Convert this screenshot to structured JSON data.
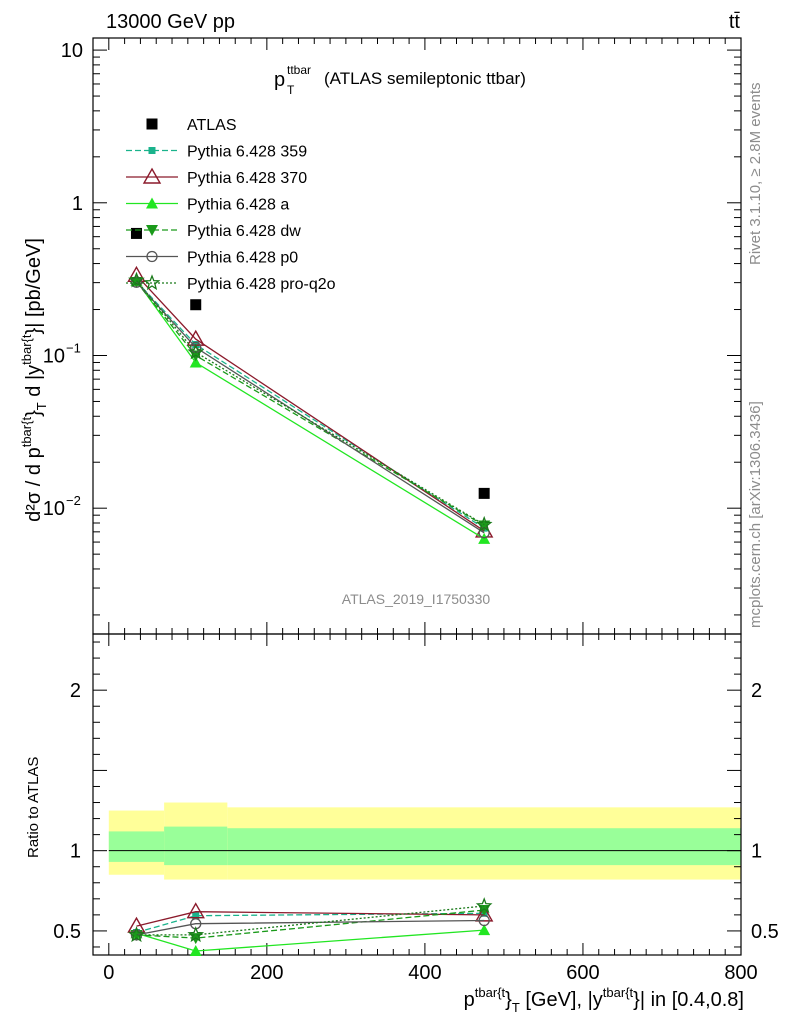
{
  "header": {
    "left": "13000 GeV pp",
    "right": "tt̄"
  },
  "side": {
    "rivet": "Rivet 3.1.10, ≥ 2.8M events",
    "mcplots": "mcplots.cern.ch [arXiv:1306.3436]"
  },
  "main_title": {
    "p": "p",
    "sup": "ttbar",
    "sub": "T",
    "rest": "(ATLAS semileptonic ttbar)"
  },
  "watermark": "ATLAS_2019_I1750330",
  "ylabel_top": "d²σ / d p^{tbar{t}}_T d |y^{tbar{t}}| [pb/GeV]",
  "ylabel_bottom": "Ratio to ATLAS",
  "xlabel": "p^{tbar{t}}_T [GeV], |y^{tbar{t}}| in [0.4,0.8]",
  "colors": {
    "atlas": "#000000",
    "p359": "#1ab38c",
    "p370": "#8b1a2b",
    "pa": "#22e622",
    "pdw": "#1a9a1a",
    "pp0": "#555555",
    "pq2o": "#1a7a1a",
    "band_outer": "#ffff99",
    "band_inner": "#99ff99"
  },
  "chart_data": {
    "type": "line",
    "x": [
      35,
      110,
      475
    ],
    "xlim": [
      -20,
      800
    ],
    "xticks": [
      0,
      200,
      400,
      600,
      800
    ],
    "top": {
      "yscale": "log",
      "ylim": [
        0.0015,
        12
      ],
      "yticks": [
        "10^{-2}",
        "10^{-1}",
        "1",
        "10"
      ]
    },
    "bottom": {
      "ylim": [
        0.35,
        2.35
      ],
      "yticks": [
        0.5,
        1,
        2
      ]
    },
    "legend": [
      {
        "key": "atlas",
        "label": "ATLAS"
      },
      {
        "key": "p359",
        "label": "Pythia 6.428 359"
      },
      {
        "key": "p370",
        "label": "Pythia 6.428 370"
      },
      {
        "key": "pa",
        "label": "Pythia 6.428 a"
      },
      {
        "key": "pdw",
        "label": "Pythia 6.428 dw"
      },
      {
        "key": "pp0",
        "label": "Pythia 6.428 p0"
      },
      {
        "key": "pq2o",
        "label": "Pythia 6.428 pro-q2o"
      }
    ],
    "atlas": {
      "x": [
        35,
        110,
        475
      ],
      "y": [
        0.63,
        0.215,
        0.0125
      ]
    },
    "series": [
      {
        "key": "p359",
        "y": [
          0.305,
          0.118,
          0.0074
        ],
        "ratio": [
          0.49,
          0.595,
          0.61
        ]
      },
      {
        "key": "p370",
        "y": [
          0.335,
          0.128,
          0.0071
        ],
        "ratio": [
          0.53,
          0.62,
          0.6
        ]
      },
      {
        "key": "pa",
        "y": [
          0.308,
          0.09,
          0.0063
        ],
        "ratio": [
          0.485,
          0.375,
          0.505
        ]
      },
      {
        "key": "pdw",
        "y": [
          0.303,
          0.1,
          0.0077
        ],
        "ratio": [
          0.475,
          0.455,
          0.63
        ]
      },
      {
        "key": "pp0",
        "y": [
          0.302,
          0.113,
          0.0069
        ],
        "ratio": [
          0.475,
          0.545,
          0.565
        ]
      },
      {
        "key": "pq2o",
        "y": [
          0.31,
          0.105,
          0.0078
        ],
        "ratio": [
          0.475,
          0.475,
          0.655
        ]
      }
    ],
    "bands": {
      "bins": [
        [
          0,
          70
        ],
        [
          70,
          150
        ],
        [
          150,
          800
        ]
      ],
      "outer": [
        [
          0.85,
          1.25
        ],
        [
          0.82,
          1.3
        ],
        [
          0.82,
          1.27
        ]
      ],
      "inner": [
        [
          0.93,
          1.12
        ],
        [
          0.91,
          1.15
        ],
        [
          0.91,
          1.14
        ]
      ]
    }
  }
}
